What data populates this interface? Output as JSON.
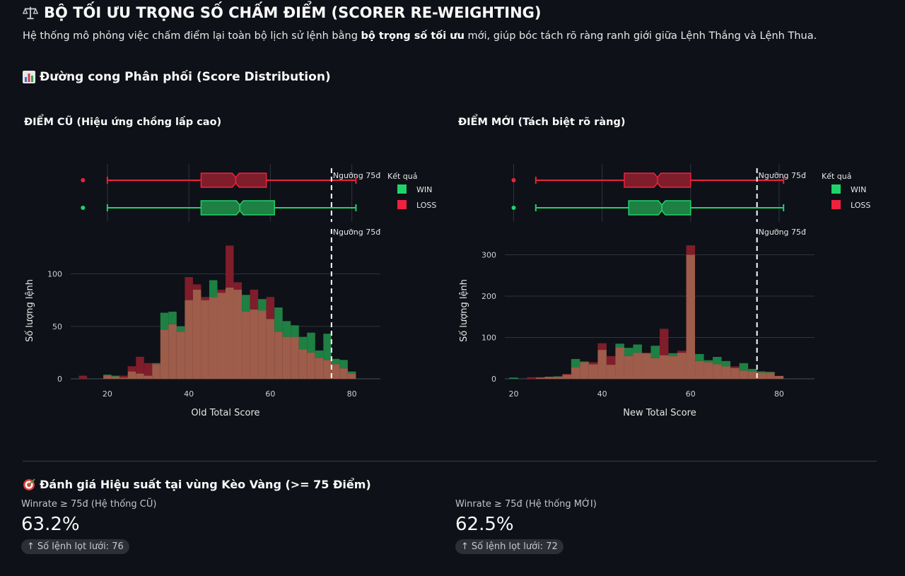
{
  "header": {
    "title": "BỘ TỐI ƯU TRỌNG SỐ CHẤM ĐIỂM (SCORER RE-WEIGHTING)",
    "title_icon": "balance-scale-icon",
    "subtitle_before": "Hệ thống mô phỏng việc chấm điểm lại toàn bộ lịch sử lệnh bằng ",
    "subtitle_bold": "bộ trọng số tối ưu",
    "subtitle_after": " mới, giúp bóc tách rõ ràng ranh giới giữa Lệnh Thắng và Lệnh Thua."
  },
  "distribution_section": {
    "title": "Đường cong Phân phối (Score Distribution)",
    "icon": "bar-chart-icon"
  },
  "colors": {
    "background": "#0e1117",
    "win": "#1fd36b",
    "loss": "#f0213e",
    "win_fill": "#1e8043",
    "loss_fill": "#7f1d2b",
    "overlap": "#9e5c4a"
  },
  "chart_data": [
    {
      "type": "bar",
      "heading": "ĐIỂM CŨ (Hiệu ứng chồng lấp cao)",
      "xlabel": "Old Total Score",
      "ylabel": "Số lượng lệnh",
      "xlim": [
        11,
        87
      ],
      "ylim": [
        0,
        130
      ],
      "yticks": [
        0,
        50,
        100
      ],
      "xticks": [
        20,
        40,
        60,
        80
      ],
      "bin_width": 2,
      "threshold": {
        "x": 75,
        "label": "Ngưỡng 75đ"
      },
      "legend": {
        "title": "Kết quả",
        "items": [
          "WIN",
          "LOSS"
        ],
        "placement": "right"
      },
      "grid": true,
      "x": [
        14,
        16,
        18,
        20,
        22,
        24,
        26,
        28,
        30,
        32,
        34,
        36,
        38,
        40,
        42,
        44,
        46,
        48,
        50,
        52,
        54,
        56,
        58,
        60,
        62,
        64,
        66,
        68,
        70,
        72,
        74,
        76,
        78,
        80
      ],
      "series": [
        {
          "name": "WIN",
          "values": [
            0,
            0,
            0,
            4,
            3,
            1,
            7,
            5,
            3,
            15,
            63,
            64,
            50,
            75,
            85,
            75,
            94,
            82,
            87,
            85,
            80,
            66,
            76,
            57,
            68,
            55,
            51,
            40,
            44,
            27,
            43,
            19,
            18,
            7
          ]
        },
        {
          "name": "LOSS",
          "values": [
            3,
            0,
            0,
            3,
            2,
            3,
            12,
            21,
            15,
            14,
            47,
            52,
            45,
            97,
            90,
            78,
            78,
            85,
            127,
            92,
            64,
            85,
            65,
            78,
            45,
            40,
            40,
            28,
            25,
            20,
            18,
            14,
            10,
            5
          ]
        }
      ],
      "boxplot": [
        {
          "name": "LOSS",
          "min": 20,
          "q1": 43,
          "median": 51.5,
          "q3": 59,
          "max": 81,
          "outlier": 14
        },
        {
          "name": "WIN",
          "min": 20,
          "q1": 43,
          "median": 52.5,
          "q3": 61,
          "max": 81,
          "outlier": 14
        }
      ]
    },
    {
      "type": "bar",
      "heading": "ĐIỂM MỚI (Tách biệt rõ ràng)",
      "xlabel": "New Total Score",
      "ylabel": "Số lượng lệnh",
      "xlim": [
        18,
        88
      ],
      "ylim": [
        0,
        330
      ],
      "yticks": [
        0,
        100,
        200,
        300
      ],
      "xticks": [
        20,
        40,
        60,
        80
      ],
      "bin_width": 2,
      "threshold": {
        "x": 75,
        "label": "Ngưỡng 75đ"
      },
      "legend": {
        "title": "Kết quả",
        "items": [
          "WIN",
          "LOSS"
        ],
        "placement": "right"
      },
      "grid": true,
      "x": [
        20,
        22,
        24,
        26,
        28,
        30,
        32,
        34,
        36,
        38,
        40,
        42,
        44,
        46,
        48,
        50,
        52,
        54,
        56,
        58,
        60,
        62,
        64,
        66,
        68,
        70,
        72,
        74,
        76,
        78,
        80
      ],
      "series": [
        {
          "name": "WIN",
          "values": [
            3,
            0,
            0,
            3,
            5,
            6,
            10,
            48,
            42,
            35,
            70,
            34,
            85,
            75,
            83,
            62,
            80,
            57,
            62,
            63,
            300,
            60,
            45,
            53,
            43,
            26,
            38,
            24,
            18,
            17,
            7
          ]
        },
        {
          "name": "LOSS",
          "values": [
            0,
            0,
            4,
            4,
            5,
            5,
            12,
            28,
            40,
            40,
            86,
            55,
            76,
            55,
            63,
            63,
            50,
            121,
            55,
            68,
            323,
            43,
            40,
            35,
            30,
            30,
            20,
            18,
            15,
            15,
            7
          ]
        }
      ],
      "boxplot": [
        {
          "name": "LOSS",
          "min": 25,
          "q1": 45,
          "median": 52.5,
          "q3": 60,
          "max": 81,
          "outlier": 20
        },
        {
          "name": "WIN",
          "min": 25,
          "q1": 46,
          "median": 53.5,
          "q3": 60,
          "max": 81,
          "outlier": 20
        }
      ]
    }
  ],
  "performance": {
    "title": "Đánh giá Hiệu suất tại vùng Kèo Vàng (>= 75 Điểm)",
    "icon": "target-icon",
    "metrics": [
      {
        "label": "Winrate ≥ 75đ (Hệ thống CŨ)",
        "value": "63.2%",
        "delta": "Số lệnh lọt lưới: 76"
      },
      {
        "label": "Winrate ≥ 75đ (Hệ thống MỚI)",
        "value": "62.5%",
        "delta": "Số lệnh lọt lưới: 72"
      }
    ]
  }
}
